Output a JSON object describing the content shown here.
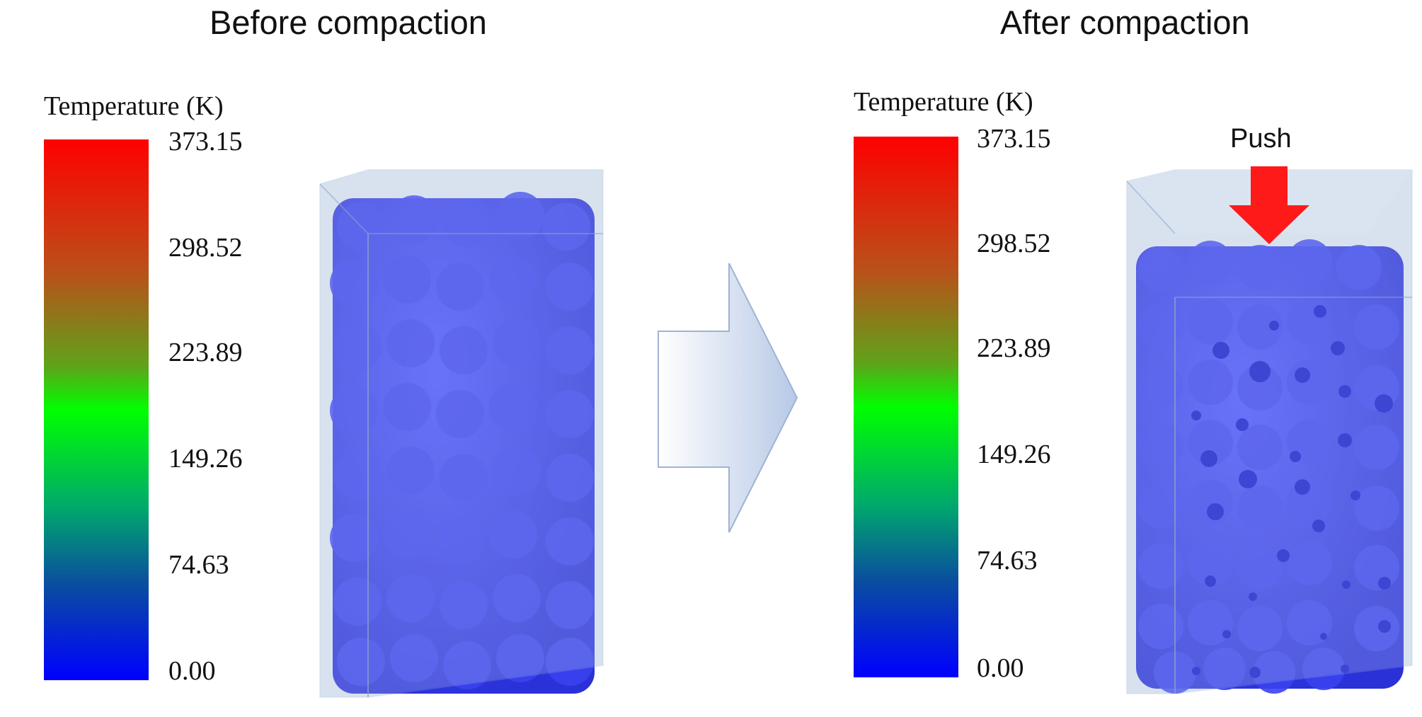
{
  "panels": {
    "before": {
      "title": "Before compaction",
      "legend_title": "Temperature (K)",
      "ticks": [
        "373.15",
        "298.52",
        "223.89",
        "149.26",
        "74.63",
        "0.00"
      ]
    },
    "after": {
      "title": "After compaction",
      "legend_title": "Temperature (K)",
      "ticks": [
        "373.15",
        "298.52",
        "223.89",
        "149.26",
        "74.63",
        "0.00"
      ],
      "push_label": "Push"
    }
  },
  "colors": {
    "particle": "#2f36e6",
    "particle_dark": "#1a22c8",
    "box": "#bfd0e4",
    "arrow": "#ff1a1a",
    "process_arrow": "#c9d6ea"
  }
}
